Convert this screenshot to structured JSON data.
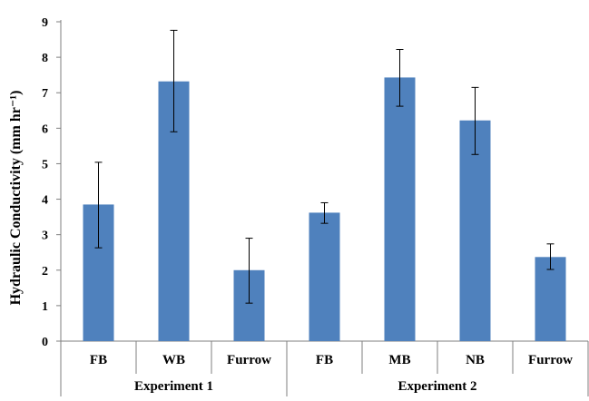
{
  "chart_data": {
    "type": "bar",
    "ylabel": "Hydraulic Conductivity (mm hr⁻¹)",
    "ylim": [
      0,
      9
    ],
    "yticks": [
      0,
      1,
      2,
      3,
      4,
      5,
      6,
      7,
      8,
      9
    ],
    "grid": false,
    "groups": [
      {
        "name": "Experiment 1",
        "categories": [
          "FB",
          "WB",
          "Furrow"
        ]
      },
      {
        "name": "Experiment 2",
        "categories": [
          "FB",
          "MB",
          "NB",
          "Furrow"
        ]
      }
    ],
    "categories": [
      "FB",
      "WB",
      "Furrow",
      "FB",
      "MB",
      "NB",
      "Furrow"
    ],
    "values": [
      3.85,
      7.32,
      2.0,
      3.62,
      7.43,
      6.22,
      2.37
    ],
    "error_low": [
      2.63,
      5.9,
      1.07,
      3.32,
      6.62,
      5.26,
      2.02
    ],
    "error_high": [
      5.04,
      8.76,
      2.9,
      3.9,
      8.22,
      7.15,
      2.74
    ],
    "bar_color": "#4f81bd"
  }
}
